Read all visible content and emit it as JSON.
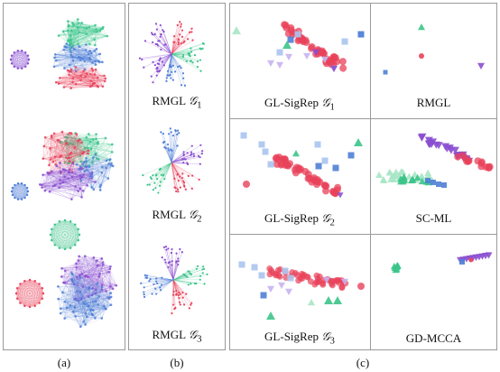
{
  "panel_a": {
    "sublabel": "(a)"
  },
  "panel_b": {
    "sublabel": "(b)",
    "captions": [
      {
        "method": "RMGL",
        "graph": "𝒢",
        "index": "1"
      },
      {
        "method": "RMGL",
        "graph": "𝒢",
        "index": "2"
      },
      {
        "method": "RMGL",
        "graph": "𝒢",
        "index": "3"
      }
    ]
  },
  "panel_c": {
    "sublabel": "(c)",
    "cells": [
      {
        "method": "GL-SigRep",
        "graph": "𝒢",
        "index": "1"
      },
      {
        "method": "RMGL",
        "graph": "",
        "index": ""
      },
      {
        "method": "GL-SigRep",
        "graph": "𝒢",
        "index": "2"
      },
      {
        "method": "SC-ML",
        "graph": "",
        "index": ""
      },
      {
        "method": "GL-SigRep",
        "graph": "𝒢",
        "index": "3"
      },
      {
        "method": "GD-MCCA",
        "graph": "",
        "index": ""
      }
    ]
  },
  "colors": {
    "red": "#e8415a",
    "green": "#3cc48a",
    "blue": "#4f7fd6",
    "purple": "#8a4fd0",
    "lightblue": "#aac4ee",
    "lavender": "#c7b2ef",
    "mint": "#a8e6c6",
    "frame": "#9a9a9a"
  }
}
